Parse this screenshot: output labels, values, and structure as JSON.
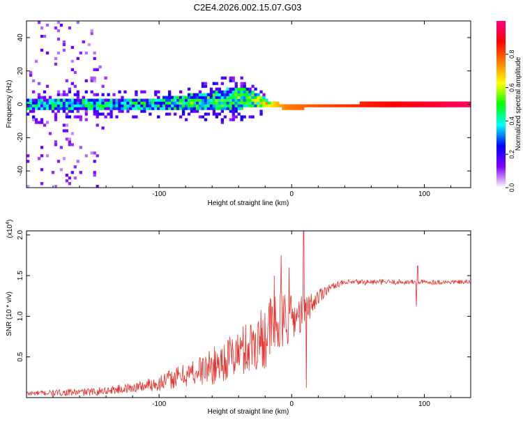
{
  "title": "C2E4.2026.002.15.07.G03",
  "chart_data": [
    {
      "type": "heatmap",
      "name": "spectrogram",
      "xlabel": "Height of straight line (km)",
      "ylabel": "Frequency (Hz)",
      "xlim": [
        -200,
        135
      ],
      "ylim": [
        -50,
        50
      ],
      "xticks": [
        -100,
        0,
        100
      ],
      "xtick_labels": [
        "-100",
        "0",
        "100"
      ],
      "yticks": [
        -40,
        -20,
        0,
        20,
        40
      ],
      "ytick_labels": [
        "-40",
        "-20",
        "0",
        "20",
        "40"
      ],
      "colorbar": {
        "label": "Normalized spectral amplitude",
        "range": [
          0,
          1
        ],
        "ticks": [
          0.0,
          0.2,
          0.4,
          0.6,
          0.8
        ],
        "tick_labels": [
          "0.0",
          "0.2",
          "0.4",
          "0.6",
          "0.8"
        ],
        "colormap": [
          "#ffffff",
          "#8000ff",
          "#0000ff",
          "#00ffff",
          "#00ff00",
          "#ffff00",
          "#ff8000",
          "#ff0000",
          "#ff0080"
        ]
      },
      "band_center_hz": [
        [
          -200,
          0
        ],
        [
          -100,
          0
        ],
        [
          -60,
          2
        ],
        [
          -35,
          4
        ],
        [
          -20,
          1
        ],
        [
          0,
          -2
        ],
        [
          10,
          -1
        ],
        [
          135,
          0
        ]
      ],
      "band_halfwidth_hz": [
        [
          -200,
          4
        ],
        [
          -110,
          3.5
        ],
        [
          -70,
          5
        ],
        [
          -40,
          7
        ],
        [
          -25,
          4
        ],
        [
          -15,
          1.5
        ],
        [
          135,
          1.5
        ]
      ],
      "amplitude_along_band": [
        [
          -200,
          0.35
        ],
        [
          -120,
          0.38
        ],
        [
          -80,
          0.42
        ],
        [
          -40,
          0.45
        ],
        [
          -20,
          0.6
        ],
        [
          -5,
          0.75
        ],
        [
          20,
          0.8
        ],
        [
          60,
          0.85
        ],
        [
          135,
          0.97
        ]
      ]
    },
    {
      "type": "line",
      "name": "snr",
      "xlabel": "Height of straight line (km)",
      "ylabel": "SNR (10 * v/v)",
      "scale_label": "(x10",
      "scale_exp": "4",
      "scale_close": ")",
      "xlim": [
        -200,
        135
      ],
      "ylim": [
        0,
        2.05
      ],
      "xticks": [
        -100,
        0,
        100
      ],
      "xtick_labels": [
        "-100",
        "0",
        "100"
      ],
      "yticks": [
        0.5,
        1.0,
        1.5,
        2.0
      ],
      "ytick_labels": [
        "0.5",
        "1.0",
        "1.5",
        "2.0"
      ],
      "color": "#e8302a",
      "envelope": [
        [
          -200,
          0.05
        ],
        [
          -150,
          0.07
        ],
        [
          -120,
          0.12
        ],
        [
          -100,
          0.18
        ],
        [
          -80,
          0.28
        ],
        [
          -60,
          0.38
        ],
        [
          -40,
          0.55
        ],
        [
          -25,
          0.7
        ],
        [
          -15,
          0.85
        ],
        [
          -5,
          0.95
        ],
        [
          5,
          1.0
        ],
        [
          15,
          1.15
        ],
        [
          25,
          1.32
        ],
        [
          35,
          1.4
        ],
        [
          50,
          1.42
        ],
        [
          135,
          1.42
        ]
      ],
      "noise": [
        [
          -200,
          0.03
        ],
        [
          -120,
          0.06
        ],
        [
          -80,
          0.15
        ],
        [
          -40,
          0.3
        ],
        [
          -15,
          0.45
        ],
        [
          0,
          0.3
        ],
        [
          15,
          0.15
        ],
        [
          30,
          0.04
        ],
        [
          135,
          0.025
        ]
      ],
      "spikes": [
        [
          -13,
          1.5
        ],
        [
          -8,
          1.75
        ],
        [
          -2,
          1.6
        ],
        [
          9,
          2.05
        ],
        [
          11,
          0.12
        ],
        [
          95,
          1.62
        ],
        [
          94,
          1.12
        ]
      ]
    }
  ]
}
